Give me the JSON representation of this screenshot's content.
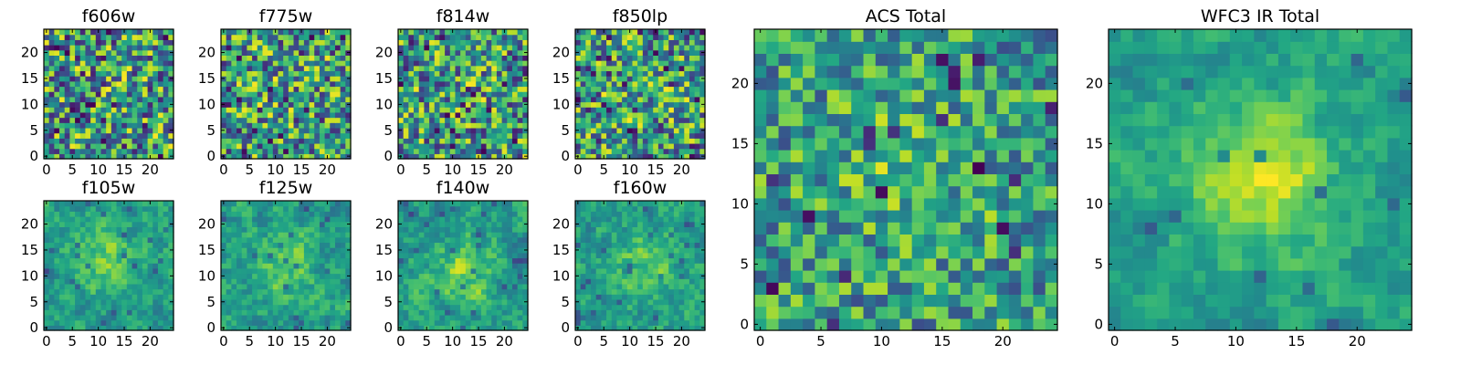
{
  "chart_data": [
    {
      "type": "heatmap",
      "title": "f606w",
      "xticks": [
        "0",
        "5",
        "10",
        "15",
        "20"
      ],
      "yticks": [
        "0",
        "5",
        "10",
        "15",
        "20"
      ],
      "grid_size": 25,
      "xlim": [
        0,
        24
      ],
      "ylim": [
        0,
        24
      ],
      "colormap": "viridis",
      "blob": [
        12,
        12,
        0.0
      ],
      "noise": 1.0,
      "dark_fraction": 0.05,
      "seed": 11
    },
    {
      "type": "heatmap",
      "title": "f775w",
      "xticks": [
        "0",
        "5",
        "10",
        "15",
        "20"
      ],
      "yticks": [
        "0",
        "5",
        "10",
        "15",
        "20"
      ],
      "grid_size": 25,
      "xlim": [
        0,
        24
      ],
      "ylim": [
        0,
        24
      ],
      "colormap": "viridis",
      "blob": [
        12,
        12,
        0.1
      ],
      "noise": 0.95,
      "dark_fraction": 0.04,
      "seed": 23
    },
    {
      "type": "heatmap",
      "title": "f814w",
      "xticks": [
        "0",
        "5",
        "10",
        "15",
        "20"
      ],
      "yticks": [
        "0",
        "5",
        "10",
        "15",
        "20"
      ],
      "grid_size": 25,
      "xlim": [
        0,
        24
      ],
      "ylim": [
        0,
        24
      ],
      "colormap": "viridis",
      "blob": [
        12,
        12,
        0.1
      ],
      "noise": 0.95,
      "dark_fraction": 0.05,
      "seed": 37
    },
    {
      "type": "heatmap",
      "title": "f850lp",
      "xticks": [
        "0",
        "5",
        "10",
        "15",
        "20"
      ],
      "yticks": [
        "0",
        "5",
        "10",
        "15",
        "20"
      ],
      "grid_size": 25,
      "xlim": [
        0,
        24
      ],
      "ylim": [
        0,
        24
      ],
      "colormap": "viridis",
      "blob": [
        12,
        12,
        0.1
      ],
      "noise": 0.95,
      "dark_fraction": 0.05,
      "seed": 41
    },
    {
      "type": "heatmap",
      "title": "f105w",
      "xticks": [
        "0",
        "5",
        "10",
        "15",
        "20"
      ],
      "yticks": [
        "0",
        "5",
        "10",
        "15",
        "20"
      ],
      "grid_size": 25,
      "xlim": [
        0,
        24
      ],
      "ylim": [
        0,
        24
      ],
      "colormap": "viridis",
      "blob": [
        11,
        13,
        0.55
      ],
      "noise": 0.55,
      "dark_fraction": 0.03,
      "seed": 53
    },
    {
      "type": "heatmap",
      "title": "f125w",
      "xticks": [
        "0",
        "5",
        "10",
        "15",
        "20"
      ],
      "yticks": [
        "0",
        "5",
        "10",
        "15",
        "20"
      ],
      "grid_size": 25,
      "xlim": [
        0,
        24
      ],
      "ylim": [
        0,
        24
      ],
      "colormap": "viridis",
      "blob": [
        12,
        12,
        0.5
      ],
      "noise": 0.6,
      "dark_fraction": 0.03,
      "seed": 67
    },
    {
      "type": "heatmap",
      "title": "f140w",
      "xticks": [
        "0",
        "5",
        "10",
        "15",
        "20"
      ],
      "yticks": [
        "0",
        "5",
        "10",
        "15",
        "20"
      ],
      "grid_size": 25,
      "xlim": [
        0,
        24
      ],
      "ylim": [
        0,
        24
      ],
      "colormap": "viridis",
      "blob": [
        12,
        11,
        0.55
      ],
      "noise": 0.6,
      "dark_fraction": 0.04,
      "seed": 71
    },
    {
      "type": "heatmap",
      "title": "f160w",
      "xticks": [
        "0",
        "5",
        "10",
        "15",
        "20"
      ],
      "yticks": [
        "0",
        "5",
        "10",
        "15",
        "20"
      ],
      "grid_size": 25,
      "xlim": [
        0,
        24
      ],
      "ylim": [
        0,
        24
      ],
      "colormap": "viridis",
      "blob": [
        13,
        13,
        0.5
      ],
      "noise": 0.6,
      "dark_fraction": 0.04,
      "seed": 83
    },
    {
      "type": "heatmap",
      "title": "ACS Total",
      "xticks": [
        "0",
        "5",
        "10",
        "15",
        "20"
      ],
      "yticks": [
        "0",
        "5",
        "10",
        "15",
        "20"
      ],
      "grid_size": 25,
      "xlim": [
        0,
        24
      ],
      "ylim": [
        0,
        24
      ],
      "colormap": "viridis",
      "blob": [
        12,
        13,
        0.35
      ],
      "noise": 0.7,
      "dark_fraction": 0.03,
      "seed": 97
    },
    {
      "type": "heatmap",
      "title": "WFC3 IR Total",
      "xticks": [
        "0",
        "5",
        "10",
        "15",
        "20"
      ],
      "yticks": [
        "0",
        "5",
        "10",
        "15",
        "20"
      ],
      "grid_size": 25,
      "xlim": [
        0,
        24
      ],
      "ylim": [
        0,
        24
      ],
      "colormap": "viridis",
      "blob": [
        12,
        12,
        0.85
      ],
      "noise": 0.45,
      "dark_fraction": 0.025,
      "seed": 101
    }
  ]
}
